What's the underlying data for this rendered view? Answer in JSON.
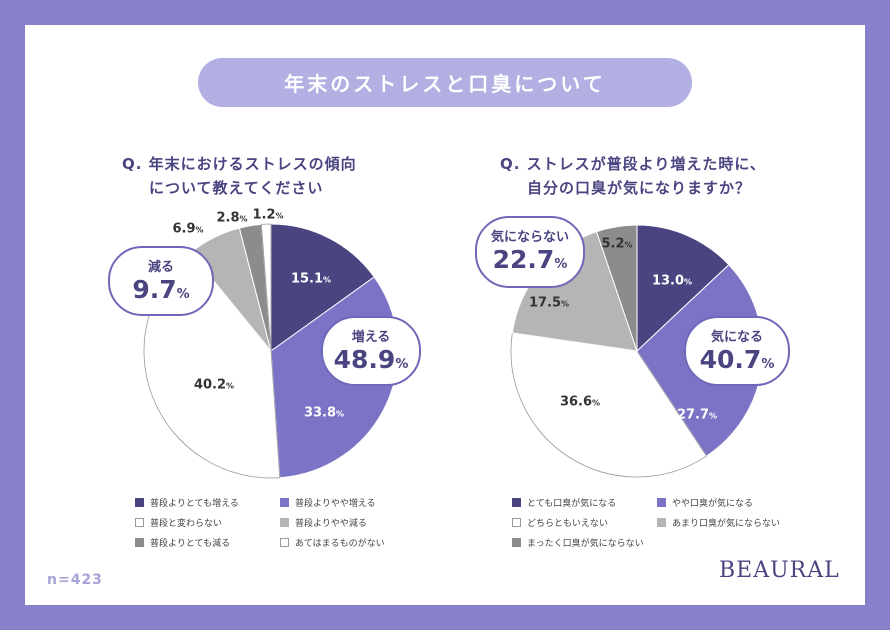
{
  "title": "年末のストレスと口臭について",
  "sample": "n=423",
  "logo": "BEAURAL",
  "colors": {
    "background": "#8781cc",
    "dark_purple": "#4a4580",
    "purple": "#7b74c6",
    "white": "#ffffff",
    "light_gray": "#b5b5b5",
    "dark_gray": "#8c8c8c"
  },
  "chart_data": [
    {
      "type": "pie",
      "title": [
        "Q. 年末におけるストレスの傾向",
        "について教えてください"
      ],
      "unit": "%",
      "categories": [
        "普段よりとても増える",
        "普段よりやや増える",
        "普段と変わらない",
        "普段よりやや減る",
        "普段よりとても減る",
        "あてはまるものがない"
      ],
      "values": [
        15.1,
        33.8,
        40.2,
        6.9,
        2.8,
        1.2
      ],
      "labels": [
        "15.1",
        "33.8",
        "40.2",
        "6.9",
        "2.8",
        "1.2"
      ],
      "colors": [
        "#4a4580",
        "#7b74c6",
        "#ffffff",
        "#b5b5b5",
        "#8c8c8c",
        "#ffffff"
      ],
      "legend_order": [
        0,
        1,
        2,
        3,
        4,
        5
      ],
      "callouts": [
        {
          "text": "増える",
          "value": "48.9"
        },
        {
          "text": "減る",
          "value": "9.7"
        }
      ]
    },
    {
      "type": "pie",
      "title": [
        "Q. ストレスが普段より増えた時に、",
        "自分の口臭が気になりますか？"
      ],
      "unit": "%",
      "categories": [
        "とても口臭が気になる",
        "やや口臭が気になる",
        "どちらともいえない",
        "あまり口臭が気にならない",
        "まったく口臭が気にならない"
      ],
      "values": [
        13.0,
        27.7,
        36.6,
        17.5,
        5.2
      ],
      "labels": [
        "13.0",
        "27.7",
        "36.6",
        "17.5",
        "5.2"
      ],
      "colors": [
        "#4a4580",
        "#7b74c6",
        "#ffffff",
        "#b5b5b5",
        "#8c8c8c"
      ],
      "callouts": [
        {
          "text": "気になる",
          "value": "40.7"
        },
        {
          "text": "気にならない",
          "value": "22.7"
        }
      ]
    }
  ]
}
